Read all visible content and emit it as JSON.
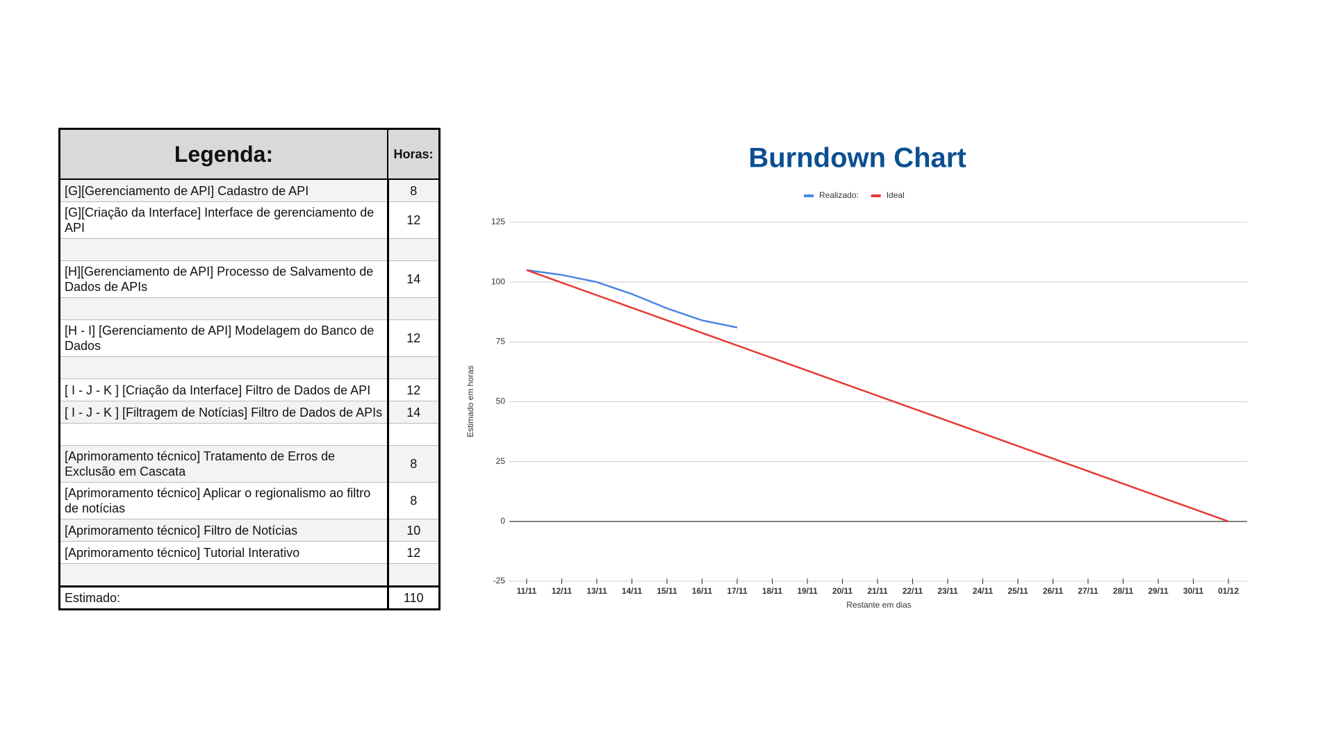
{
  "table": {
    "title": "Legenda:",
    "hours_header": "Horas:",
    "rows": [
      [
        "[G][Gerenciamento de API] Cadastro de API",
        8
      ],
      [
        "[G][Criação da Interface] Interface de gerenciamento de API",
        12
      ],
      null,
      [
        "[H][Gerenciamento de API] Processo de Salvamento de Dados de APIs",
        14
      ],
      null,
      [
        "[H - I] [Gerenciamento de API] Modelagem do Banco de Dados",
        12
      ],
      null,
      [
        "[ I - J - K ] [Criação da Interface] Filtro de Dados de API",
        12
      ],
      [
        "[ I - J - K ] [Filtragem de Notícias] Filtro de Dados de APIs",
        14
      ],
      null,
      [
        "[Aprimoramento técnico] Tratamento de Erros de Exclusão em Cascata",
        8
      ],
      [
        "[Aprimoramento técnico] Aplicar o regionalismo ao filtro de notícias",
        8
      ],
      [
        "[Aprimoramento técnico] Filtro de Notícias",
        10
      ],
      [
        "[Aprimoramento técnico] Tutorial Interativo",
        12
      ],
      null
    ],
    "footer": [
      "Estimado:",
      110
    ]
  },
  "chart_data": {
    "type": "line",
    "title": "Burndown Chart",
    "x_label": "Restante em dias",
    "y_label": "Estimado em horas",
    "categories": [
      "11/11",
      "12/11",
      "13/11",
      "14/11",
      "15/11",
      "16/11",
      "17/11",
      "18/11",
      "19/11",
      "20/11",
      "21/11",
      "22/11",
      "23/11",
      "24/11",
      "25/11",
      "26/11",
      "27/11",
      "28/11",
      "29/11",
      "30/11",
      "01/12"
    ],
    "series": [
      {
        "name": "Realizado:",
        "color": "#4a86e8",
        "values": [
          105,
          103,
          100,
          95,
          89,
          84,
          81,
          null,
          null,
          null,
          null,
          null,
          null,
          null,
          null,
          null,
          null,
          null,
          null,
          null,
          null
        ]
      },
      {
        "name": "Ideal",
        "color": "#e53935",
        "values": [
          105,
          99.75,
          94.5,
          89.25,
          84,
          78.75,
          73.5,
          68.25,
          63,
          57.75,
          52.5,
          47.25,
          42,
          36.75,
          31.5,
          26.25,
          21,
          15.75,
          10.5,
          5.25,
          0
        ]
      }
    ],
    "ylim": [
      -25,
      125
    ],
    "yticks": [
      -25,
      0,
      25,
      50,
      75,
      100,
      125
    ],
    "grid": true,
    "legend": "top"
  }
}
